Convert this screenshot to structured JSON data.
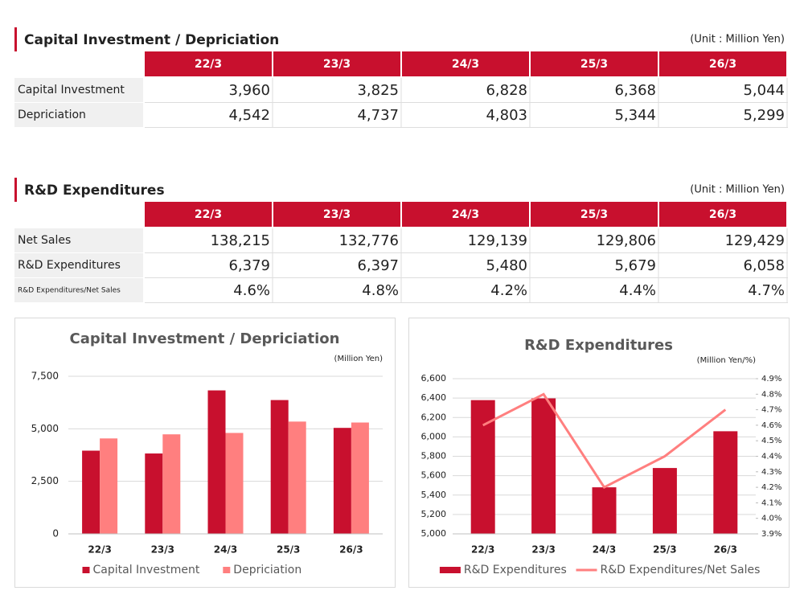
{
  "tables": [
    {
      "title": "Capital Investment / Depriciation",
      "unit": "(Unit : Million Yen)",
      "columns": [
        "22/3",
        "23/3",
        "24/3",
        "25/3",
        "26/3"
      ],
      "rows": [
        {
          "label": "Capital Investment",
          "cells": [
            "3,960",
            "3,825",
            "6,828",
            "6,368",
            "5,044"
          ]
        },
        {
          "label": "Depriciation",
          "cells": [
            "4,542",
            "4,737",
            "4,803",
            "5,344",
            "5,299"
          ]
        }
      ]
    },
    {
      "title": "R&D Expenditures",
      "unit": "(Unit : Million Yen)",
      "columns": [
        "22/3",
        "23/3",
        "24/3",
        "25/3",
        "26/3"
      ],
      "rows": [
        {
          "label": "Net Sales",
          "cells": [
            "138,215",
            "132,776",
            "129,139",
            "129,806",
            "129,429"
          ]
        },
        {
          "label": "R&D Expenditures",
          "cells": [
            "6,379",
            "6,397",
            "5,480",
            "5,679",
            "6,058"
          ]
        },
        {
          "label": "R&D Expenditures/Net Sales",
          "cells": [
            "4.6%",
            "4.8%",
            "4.2%",
            "4.4%",
            "4.7%"
          ]
        }
      ]
    }
  ],
  "chart_data": [
    {
      "type": "bar",
      "title": "Capital Investment / Depriciation",
      "unit": "(Million Yen)",
      "categories": [
        "22/3",
        "23/3",
        "24/3",
        "25/3",
        "26/3"
      ],
      "series": [
        {
          "name": "Capital Investment",
          "color": "#c8102e",
          "values": [
            3960,
            3825,
            6828,
            6368,
            5044
          ]
        },
        {
          "name": "Depriciation",
          "color": "#ff7f7f",
          "values": [
            4542,
            4737,
            4803,
            5344,
            5299
          ]
        }
      ],
      "ylim": [
        0,
        7500
      ],
      "yticks": [
        0,
        {
          "value": 2500,
          "label": "2,500"
        },
        {
          "value": 5000,
          "label": "5,000"
        },
        {
          "value": 7500,
          "label": "7,500"
        }
      ],
      "grid": true,
      "legend": "bottom"
    },
    {
      "type": "bar",
      "title": "R&D Expenditures",
      "unit": "(Million Yen/%)",
      "categories": [
        "22/3",
        "23/3",
        "24/3",
        "25/3",
        "26/3"
      ],
      "series": [
        {
          "name": "R&D Expenditures",
          "color": "#c8102e",
          "values": [
            6379,
            6397,
            5480,
            5679,
            6058
          ]
        },
        {
          "name": "R&D Expenditures/Net Sales",
          "color": "#ff7f7f",
          "type": "line",
          "axis": "y2",
          "values": [
            4.6,
            4.8,
            4.2,
            4.4,
            4.7
          ]
        }
      ],
      "ylim": [
        5000,
        6600
      ],
      "yticks": [
        {
          "value": 5000,
          "label": "5,000"
        },
        {
          "value": 5200,
          "label": "5,200"
        },
        {
          "value": 5400,
          "label": "5,400"
        },
        {
          "value": 5600,
          "label": "5,600"
        },
        {
          "value": 5800,
          "label": "5,800"
        },
        {
          "value": 6000,
          "label": "6,000"
        },
        {
          "value": 6200,
          "label": "6,200"
        },
        {
          "value": 6400,
          "label": "6,400"
        },
        {
          "value": 6600,
          "label": "6,600"
        }
      ],
      "y2lim": [
        3.9,
        4.9
      ],
      "y2ticks": [
        {
          "value": 3.9,
          "label": "3.9%"
        },
        {
          "value": 4.0,
          "label": "4.0%"
        },
        {
          "value": 4.1,
          "label": "4.1%"
        },
        {
          "value": 4.2,
          "label": "4.2%"
        },
        {
          "value": 4.3,
          "label": "4.3%"
        },
        {
          "value": 4.4,
          "label": "4.4%"
        },
        {
          "value": 4.5,
          "label": "4.5%"
        },
        {
          "value": 4.6,
          "label": "4.6%"
        },
        {
          "value": 4.7,
          "label": "4.7%"
        },
        {
          "value": 4.8,
          "label": "4.8%"
        },
        {
          "value": 4.9,
          "label": "4.9%"
        }
      ],
      "grid": true,
      "legend": "bottom"
    }
  ]
}
